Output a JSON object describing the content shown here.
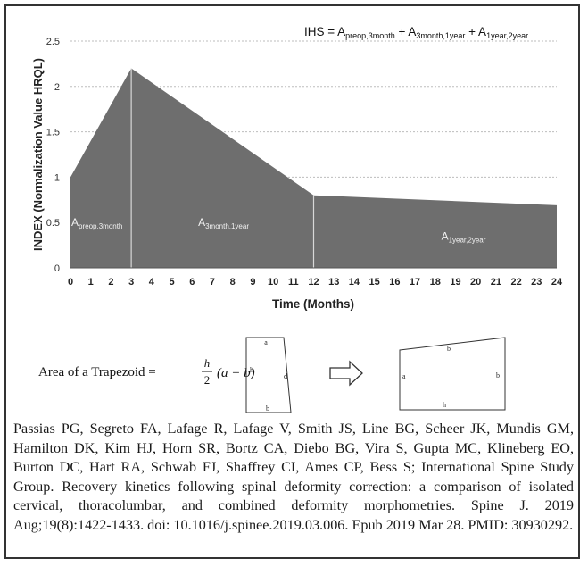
{
  "chart_data": {
    "type": "area",
    "x": [
      0,
      3,
      12,
      24
    ],
    "values": [
      1.0,
      2.2,
      0.8,
      0.69
    ],
    "xlim": [
      0,
      24
    ],
    "ylim": [
      0,
      2.5
    ],
    "xticks": [
      "0",
      "1",
      "2",
      "3",
      "4",
      "5",
      "6",
      "7",
      "8",
      "9",
      "10",
      "11",
      "12",
      "13",
      "14",
      "15",
      "16",
      "17",
      "18",
      "19",
      "20",
      "21",
      "22",
      "23",
      "24"
    ],
    "yticks": [
      "0",
      "0.5",
      "1",
      "1.5",
      "2",
      "2.5"
    ],
    "xlabel": "Time (Months)",
    "ylabel": "INDEX (Normalization Value HRQL)",
    "grid": true,
    "region_labels": [
      {
        "main": "A",
        "sub": "preop,3month"
      },
      {
        "main": "A",
        "sub": "3month,1year"
      },
      {
        "main": "A",
        "sub": "1year,2year"
      }
    ],
    "formula": {
      "prefix": "IHS = ",
      "terms": [
        {
          "main": "A",
          "sub": "preop,3month"
        },
        {
          "main": "A",
          "sub": "3month,1year"
        },
        {
          "main": "A",
          "sub": "1year,2year"
        }
      ],
      "joiner": " + "
    },
    "colors": {
      "area": "#6e6e6e",
      "divider": "#d8d8d8",
      "grid": "#bdbdbd"
    }
  },
  "trapezoid": {
    "label": "Area of a Trapezoid = ",
    "num": "h",
    "den": "2",
    "rest": "(a + b)",
    "arrow_icon": "arrow-right-outline-icon",
    "left_letters": {
      "top": "a",
      "bottom": "b",
      "left": "h",
      "right": "d"
    },
    "right_letters": {
      "top": "b",
      "bottom": "h",
      "left": "a",
      "right": "b"
    }
  },
  "citation": "Passias PG, Segreto FA, Lafage R, Lafage V, Smith JS, Line BG, Scheer JK, Mundis GM, Hamilton DK, Kim HJ, Horn SR, Bortz CA, Diebo BG, Vira S, Gupta MC, Klineberg EO, Burton DC, Hart RA, Schwab FJ, Shaffrey CI, Ames CP, Bess S; International Spine Study Group. Recovery kinetics following spinal deformity correction: a comparison of isolated cervical, thoracolumbar, and combined deformity morphometries. Spine J. 2019 Aug;19(8):1422-1433. doi: 10.1016/j.spinee.2019.03.006. Epub 2019 Mar 28. PMID: 30930292."
}
